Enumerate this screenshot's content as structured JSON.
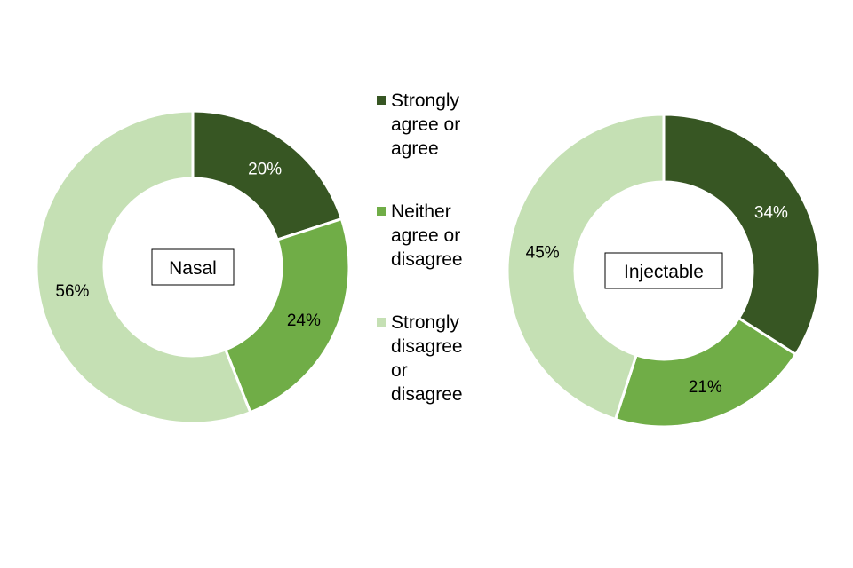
{
  "chart_data": [
    {
      "type": "pie",
      "title": "Nasal",
      "categories": [
        "Strongly agree or agree",
        "Neither agree or disagree",
        "Strongly disagree or disagree"
      ],
      "values": [
        20,
        24,
        56
      ],
      "value_labels": [
        "20%",
        "24%",
        "56%"
      ],
      "colors": [
        "#375623",
        "#70ad47",
        "#c5e0b4"
      ],
      "label_colors": [
        "#ffffff",
        "#000000",
        "#000000"
      ],
      "hole": "donut"
    },
    {
      "type": "pie",
      "title": "Injectable",
      "categories": [
        "Strongly agree or agree",
        "Neither agree or disagree",
        "Strongly disagree or disagree"
      ],
      "values": [
        34,
        21,
        45
      ],
      "value_labels": [
        "34%",
        "21%",
        "45%"
      ],
      "colors": [
        "#375623",
        "#70ad47",
        "#c5e0b4"
      ],
      "label_colors": [
        "#ffffff",
        "#000000",
        "#000000"
      ],
      "hole": "donut"
    }
  ],
  "legend": {
    "placement": "center",
    "items": [
      {
        "lines": [
          "Strongly",
          "agree or",
          "agree"
        ],
        "color": "#375623"
      },
      {
        "lines": [
          "Neither",
          "agree or",
          "disagree"
        ],
        "color": "#70ad47"
      },
      {
        "lines": [
          "Strongly",
          "disagree",
          "or",
          "disagree"
        ],
        "color": "#c5e0b4"
      }
    ]
  }
}
